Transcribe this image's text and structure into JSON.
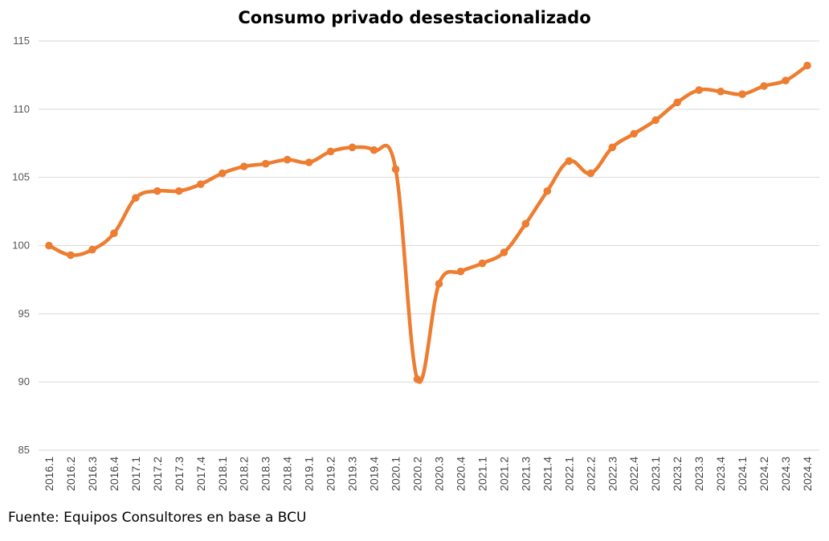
{
  "chart_data": {
    "type": "line",
    "title": "Consumo privado desestacionalizado",
    "xlabel": "",
    "ylabel": "",
    "ylim": [
      85,
      115
    ],
    "yticks": [
      85,
      90,
      95,
      100,
      105,
      110,
      115
    ],
    "grid": true,
    "color": "#ED7D31",
    "categories": [
      "2016.1",
      "2016.2",
      "2016.3",
      "2016.4",
      "2017.1",
      "2017.2",
      "2017.3",
      "2017.4",
      "2018.1",
      "2018.2",
      "2018.3",
      "2018.4",
      "2019.1",
      "2019.2",
      "2019.3",
      "2019.4",
      "2020.1",
      "2020.2",
      "2020.3",
      "2020.4",
      "2021.1",
      "2021.2",
      "2021.3",
      "2021.4",
      "2022.1",
      "2022.2",
      "2022.3",
      "2022.4",
      "2023.1",
      "2023.2",
      "2023.3",
      "2023.4",
      "2024.1",
      "2024.2",
      "2024.3",
      "2024.4"
    ],
    "series": [
      {
        "name": "",
        "values": [
          100.0,
          99.3,
          99.7,
          100.9,
          103.5,
          104.0,
          104.0,
          104.5,
          105.3,
          105.8,
          106.0,
          106.3,
          106.1,
          106.9,
          107.2,
          107.0,
          105.6,
          90.2,
          97.2,
          98.1,
          98.7,
          99.5,
          101.6,
          104.0,
          106.2,
          105.3,
          107.2,
          108.2,
          109.2,
          110.5,
          111.4,
          111.3,
          111.1,
          111.7,
          112.1,
          113.2
        ]
      }
    ]
  },
  "source": "Fuente: Equipos Consultores en base a BCU"
}
